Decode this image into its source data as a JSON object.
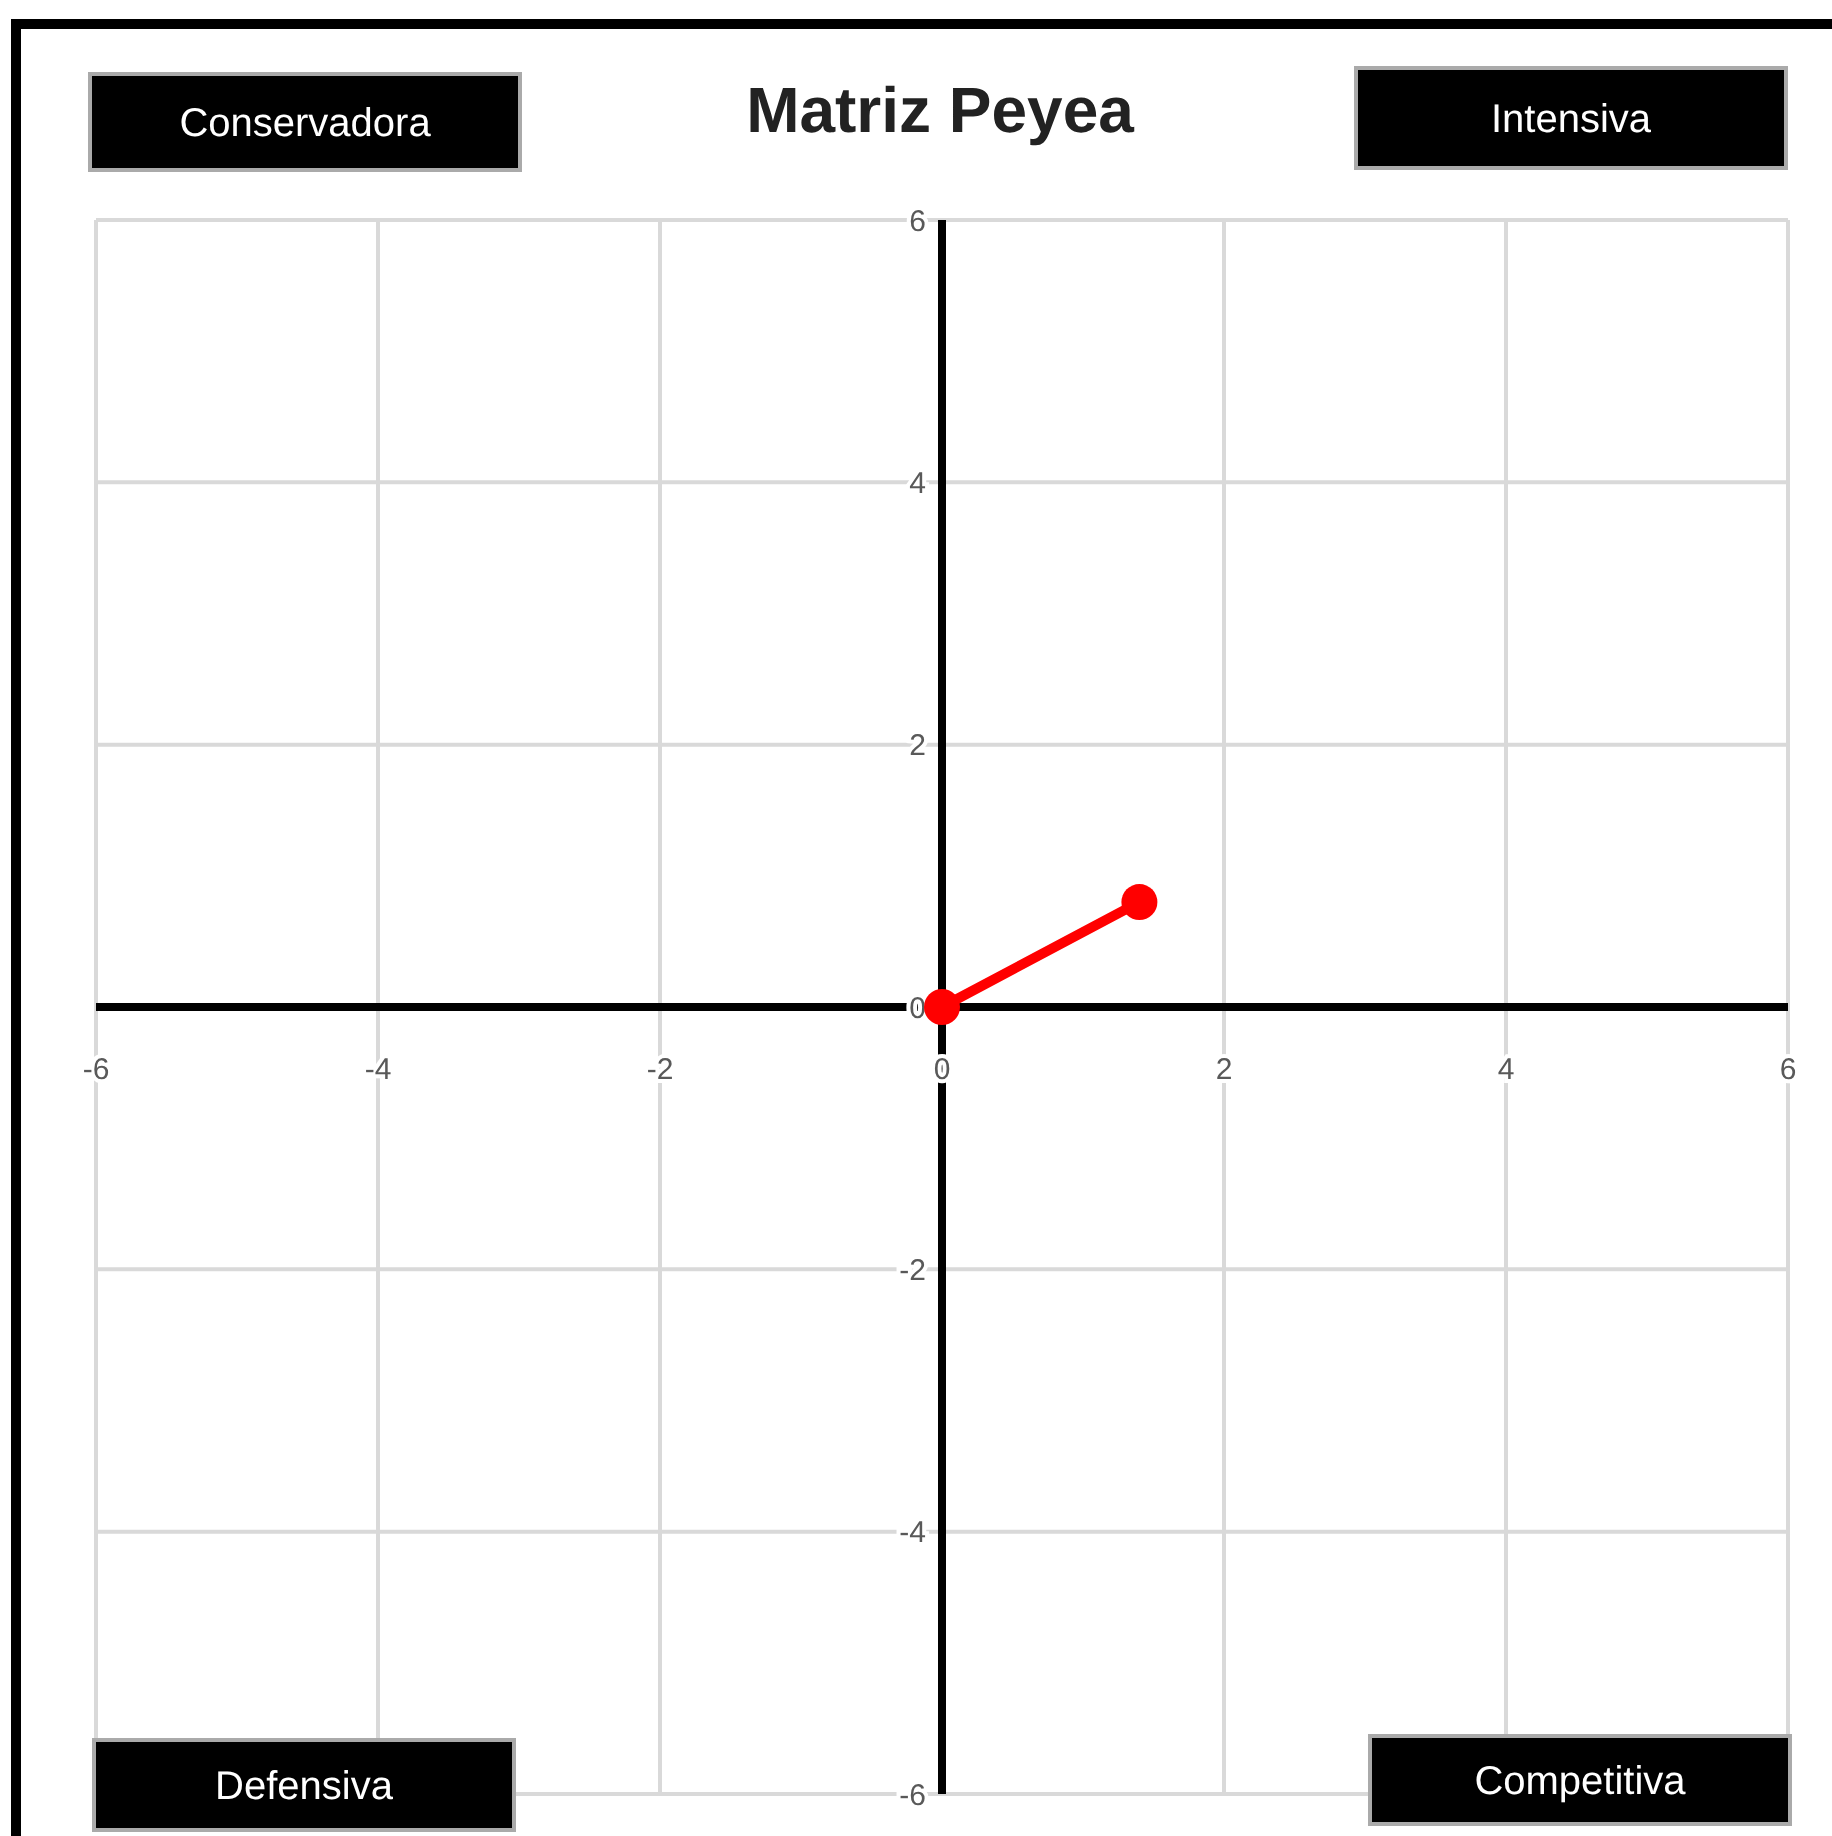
{
  "chart_data": {
    "type": "line",
    "title": "Matriz Peyea",
    "annotations": [
      "Conservadora",
      "Intensiva",
      "Defensiva",
      "Competitiva"
    ],
    "series": [
      {
        "color": "#ff0000",
        "x": [
          0,
          1.4
        ],
        "values": [
          0,
          0.8
        ]
      }
    ],
    "xlim": [
      -6,
      6
    ],
    "xticks": [
      -6,
      -4,
      -2,
      0,
      2,
      4,
      6
    ],
    "ylim": [
      -6,
      6
    ],
    "yticks": [
      -6,
      -4,
      -2,
      0,
      2,
      4,
      6
    ],
    "grid": true,
    "marker": "circle",
    "line_style": "solid"
  }
}
